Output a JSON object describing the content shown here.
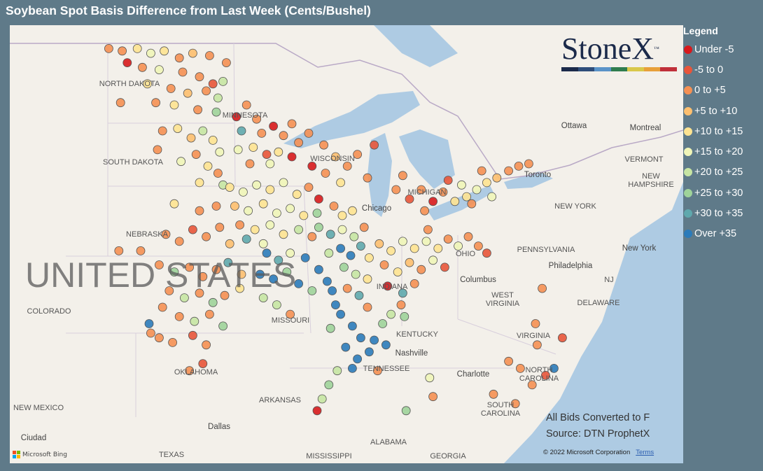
{
  "title": "Soybean Spot Basis Difference from Last Week (Cents/Bushel)",
  "legend": {
    "title": "Legend",
    "items": [
      {
        "label": "Under -5",
        "color": "#d7191c"
      },
      {
        "label": "-5 to 0",
        "color": "#e8553a"
      },
      {
        "label": "0 to +5",
        "color": "#f59053"
      },
      {
        "label": "+5 to +10",
        "color": "#fdbf6f"
      },
      {
        "label": "+10 to +15",
        "color": "#fee391"
      },
      {
        "label": "+15 to +20",
        "color": "#f0f5b8"
      },
      {
        "label": "+20 to +25",
        "color": "#c7e5a3"
      },
      {
        "label": "+25 to +30",
        "color": "#9fd39a"
      },
      {
        "label": "+30 to +35",
        "color": "#5fa8ad"
      },
      {
        "label": "Over +35",
        "color": "#2b7bba"
      }
    ]
  },
  "logo": {
    "text": "StoneX",
    "tm": "™",
    "bar_colors": [
      "#1b2a4a",
      "#2e4d7a",
      "#5a93c8",
      "#2f7d4f",
      "#d9c84a",
      "#e8a03a",
      "#c0303a"
    ]
  },
  "notes": {
    "line1": "All Bids Converted to F",
    "line2": "Source: DTN ProphetX"
  },
  "attribution": {
    "copyright": "© 2022 Microsoft Corporation",
    "terms": "Terms",
    "bing": "Microsoft Bing"
  },
  "map": {
    "country_label": "UNITED STATES",
    "labels": [
      "NORTH DAKOTA",
      "MINNESOTA",
      "SOUTH DAKOTA",
      "WISCONSIN",
      "MICHIGAN",
      "NEBRASKA",
      "COLORADO",
      "MISSOURI",
      "INDIANA",
      "OHIO",
      "PENNSYLVANIA",
      "WEST VIRGINIA",
      "VIRGINIA",
      "KENTUCKY",
      "TENNESSEE",
      "NORTH CAROLINA",
      "SOUTH CAROLINA",
      "OKLAHOMA",
      "ARKANSAS",
      "NEW MEXICO",
      "NEW YORK",
      "VERMONT",
      "NEW HAMPSHIRE",
      "NJ",
      "DELAWARE",
      "ALABAMA",
      "MISSISSIPPI",
      "GEORGIA",
      "TEXAS"
    ],
    "cities": [
      "Ottawa",
      "Montreal",
      "Toronto",
      "Chicago",
      "Columbus",
      "Philadelphia",
      "New York",
      "Nashville",
      "Charlotte",
      "Dallas",
      "Ciudad"
    ]
  },
  "chart_data": {
    "type": "scatter",
    "title": "Soybean Spot Basis Difference from Last Week (Cents/Bushel)",
    "encoding": "points are [longitude, latitude, legend bin index]",
    "points": [
      [
        -103.4,
        48.9,
        2
      ],
      [
        -102.6,
        48.8,
        2
      ],
      [
        -101.7,
        48.9,
        4
      ],
      [
        -100.9,
        48.7,
        5
      ],
      [
        -100.1,
        48.8,
        4
      ],
      [
        -99.2,
        48.5,
        2
      ],
      [
        -98.4,
        48.7,
        3
      ],
      [
        -97.4,
        48.6,
        2
      ],
      [
        -102.3,
        48.3,
        0
      ],
      [
        -101.4,
        48.1,
        2
      ],
      [
        -100.4,
        48.0,
        5
      ],
      [
        -99.0,
        47.9,
        2
      ],
      [
        -98.0,
        47.7,
        2
      ],
      [
        -97.2,
        47.4,
        1
      ],
      [
        -101.1,
        47.4,
        4
      ],
      [
        -99.7,
        47.2,
        2
      ],
      [
        -98.7,
        47.0,
        3
      ],
      [
        -97.6,
        47.1,
        2
      ],
      [
        -96.9,
        46.8,
        6
      ],
      [
        -98.1,
        46.3,
        2
      ],
      [
        -99.5,
        46.5,
        4
      ],
      [
        -100.6,
        46.6,
        2
      ],
      [
        -102.7,
        46.6,
        2
      ],
      [
        -97.0,
        46.2,
        7
      ],
      [
        -96.6,
        47.5,
        6
      ],
      [
        -96.4,
        48.3,
        2
      ],
      [
        -95.8,
        46.0,
        0
      ],
      [
        -95.2,
        46.5,
        2
      ],
      [
        -94.6,
        45.9,
        2
      ],
      [
        -95.5,
        45.4,
        8
      ],
      [
        -94.3,
        45.3,
        2
      ],
      [
        -93.6,
        45.6,
        0
      ],
      [
        -93.0,
        45.2,
        2
      ],
      [
        -92.5,
        45.7,
        2
      ],
      [
        -100.2,
        45.4,
        2
      ],
      [
        -99.3,
        45.5,
        4
      ],
      [
        -98.5,
        45.1,
        3
      ],
      [
        -97.8,
        45.4,
        6
      ],
      [
        -97.2,
        45.0,
        4
      ],
      [
        -96.8,
        44.5,
        5
      ],
      [
        -98.2,
        44.4,
        2
      ],
      [
        -99.1,
        44.1,
        5
      ],
      [
        -97.5,
        43.9,
        4
      ],
      [
        -96.9,
        43.6,
        2
      ],
      [
        -100.5,
        44.6,
        2
      ],
      [
        -96.6,
        43.1,
        6
      ],
      [
        -98.0,
        43.2,
        4
      ],
      [
        -95.7,
        44.6,
        5
      ],
      [
        -94.8,
        44.7,
        4
      ],
      [
        -94.0,
        44.4,
        1
      ],
      [
        -93.3,
        44.5,
        4
      ],
      [
        -92.5,
        44.3,
        0
      ],
      [
        -93.8,
        44.0,
        5
      ],
      [
        -95.0,
        44.0,
        2
      ],
      [
        -92.1,
        44.9,
        2
      ],
      [
        -91.5,
        45.3,
        2
      ],
      [
        -90.6,
        44.8,
        2
      ],
      [
        -89.9,
        44.3,
        3
      ],
      [
        -89.2,
        43.9,
        2
      ],
      [
        -88.6,
        44.4,
        2
      ],
      [
        -88.0,
        43.4,
        2
      ],
      [
        -89.6,
        43.2,
        4
      ],
      [
        -90.5,
        43.6,
        2
      ],
      [
        -91.3,
        43.9,
        0
      ],
      [
        -87.6,
        44.8,
        1
      ],
      [
        -96.2,
        43.0,
        4
      ],
      [
        -95.4,
        42.8,
        5
      ],
      [
        -94.6,
        43.1,
        5
      ],
      [
        -93.8,
        42.9,
        4
      ],
      [
        -93.0,
        43.2,
        5
      ],
      [
        -92.2,
        42.7,
        4
      ],
      [
        -91.5,
        43.0,
        2
      ],
      [
        -90.9,
        42.5,
        0
      ],
      [
        -95.9,
        42.2,
        3
      ],
      [
        -95.1,
        42.0,
        5
      ],
      [
        -94.2,
        42.3,
        4
      ],
      [
        -93.4,
        41.9,
        5
      ],
      [
        -92.6,
        42.1,
        5
      ],
      [
        -91.8,
        41.8,
        4
      ],
      [
        -91.0,
        41.9,
        7
      ],
      [
        -95.6,
        41.4,
        2
      ],
      [
        -94.7,
        41.2,
        4
      ],
      [
        -93.8,
        41.4,
        5
      ],
      [
        -93.0,
        41.0,
        4
      ],
      [
        -92.1,
        41.2,
        6
      ],
      [
        -91.3,
        40.9,
        2
      ],
      [
        -95.2,
        40.8,
        8
      ],
      [
        -94.2,
        40.6,
        5
      ],
      [
        -100.0,
        41.0,
        2
      ],
      [
        -99.2,
        40.7,
        2
      ],
      [
        -98.4,
        41.2,
        1
      ],
      [
        -97.6,
        40.9,
        2
      ],
      [
        -96.8,
        41.3,
        2
      ],
      [
        -96.2,
        40.6,
        3
      ],
      [
        -98.0,
        42.0,
        2
      ],
      [
        -97.0,
        42.2,
        2
      ],
      [
        -99.5,
        42.3,
        4
      ],
      [
        -101.5,
        40.3,
        2
      ],
      [
        -102.8,
        40.3,
        2
      ],
      [
        -100.4,
        39.7,
        2
      ],
      [
        -99.5,
        39.4,
        7
      ],
      [
        -98.6,
        39.6,
        2
      ],
      [
        -97.8,
        39.2,
        2
      ],
      [
        -97.0,
        39.5,
        2
      ],
      [
        -96.3,
        39.8,
        8
      ],
      [
        -95.5,
        39.3,
        3
      ],
      [
        -99.8,
        38.6,
        2
      ],
      [
        -98.9,
        38.3,
        6
      ],
      [
        -98.0,
        38.5,
        2
      ],
      [
        -97.2,
        38.1,
        7
      ],
      [
        -96.5,
        38.4,
        2
      ],
      [
        -95.6,
        38.7,
        4
      ],
      [
        -100.2,
        37.9,
        2
      ],
      [
        -99.2,
        37.5,
        2
      ],
      [
        -98.3,
        37.3,
        6
      ],
      [
        -97.4,
        37.6,
        2
      ],
      [
        -96.6,
        37.1,
        7
      ],
      [
        -101.0,
        37.2,
        9
      ],
      [
        -100.4,
        36.6,
        2
      ],
      [
        -99.6,
        36.4,
        2
      ],
      [
        -98.4,
        36.7,
        1
      ],
      [
        -97.6,
        36.3,
        2
      ],
      [
        -97.8,
        35.5,
        1
      ],
      [
        -98.6,
        35.2,
        2
      ],
      [
        -100.9,
        36.8,
        2
      ],
      [
        -94.0,
        40.2,
        9
      ],
      [
        -93.3,
        39.9,
        8
      ],
      [
        -92.6,
        40.2,
        5
      ],
      [
        -91.7,
        40.0,
        9
      ],
      [
        -94.4,
        39.3,
        9
      ],
      [
        -93.6,
        39.1,
        9
      ],
      [
        -92.8,
        39.4,
        7
      ],
      [
        -92.1,
        38.9,
        9
      ],
      [
        -91.3,
        38.6,
        7
      ],
      [
        -94.2,
        38.3,
        6
      ],
      [
        -93.4,
        38.0,
        6
      ],
      [
        -92.6,
        37.6,
        2
      ],
      [
        -90.9,
        39.5,
        9
      ],
      [
        -90.4,
        39.0,
        9
      ],
      [
        -90.1,
        38.6,
        9
      ],
      [
        -89.9,
        38.0,
        9
      ],
      [
        -89.6,
        37.6,
        9
      ],
      [
        -90.2,
        37.0,
        7
      ],
      [
        -90.9,
        41.3,
        7
      ],
      [
        -90.2,
        41.0,
        8
      ],
      [
        -89.5,
        41.2,
        5
      ],
      [
        -88.8,
        40.9,
        6
      ],
      [
        -88.2,
        41.3,
        2
      ],
      [
        -89.6,
        40.4,
        9
      ],
      [
        -89.0,
        40.1,
        9
      ],
      [
        -88.4,
        40.5,
        8
      ],
      [
        -87.9,
        40.0,
        4
      ],
      [
        -90.3,
        40.2,
        6
      ],
      [
        -89.4,
        39.6,
        7
      ],
      [
        -88.7,
        39.3,
        6
      ],
      [
        -88.0,
        39.1,
        4
      ],
      [
        -89.2,
        38.7,
        2
      ],
      [
        -88.5,
        38.4,
        8
      ],
      [
        -88.0,
        37.9,
        2
      ],
      [
        -89.5,
        41.8,
        4
      ],
      [
        -90.0,
        42.2,
        2
      ],
      [
        -88.9,
        42.0,
        4
      ],
      [
        -87.3,
        40.6,
        3
      ],
      [
        -86.6,
        40.3,
        4
      ],
      [
        -85.9,
        40.7,
        5
      ],
      [
        -85.2,
        40.4,
        4
      ],
      [
        -84.5,
        40.7,
        5
      ],
      [
        -83.8,
        40.4,
        4
      ],
      [
        -83.2,
        40.8,
        2
      ],
      [
        -82.6,
        40.5,
        5
      ],
      [
        -87.0,
        39.7,
        2
      ],
      [
        -86.2,
        39.4,
        4
      ],
      [
        -85.5,
        39.8,
        3
      ],
      [
        -84.8,
        39.5,
        2
      ],
      [
        -84.1,
        39.9,
        5
      ],
      [
        -83.4,
        39.6,
        1
      ],
      [
        -86.8,
        38.8,
        0
      ],
      [
        -85.9,
        38.5,
        8
      ],
      [
        -85.2,
        38.9,
        2
      ],
      [
        -84.4,
        41.2,
        2
      ],
      [
        -82.0,
        40.9,
        2
      ],
      [
        -81.4,
        40.5,
        2
      ],
      [
        -80.9,
        40.2,
        1
      ],
      [
        -86.3,
        42.9,
        2
      ],
      [
        -85.5,
        42.5,
        1
      ],
      [
        -84.8,
        42.9,
        2
      ],
      [
        -84.1,
        42.4,
        0
      ],
      [
        -83.5,
        42.8,
        2
      ],
      [
        -85.9,
        43.5,
        2
      ],
      [
        -83.2,
        43.3,
        1
      ],
      [
        -84.6,
        42.0,
        2
      ],
      [
        -82.8,
        42.4,
        4
      ],
      [
        -82.1,
        42.6,
        4
      ],
      [
        -81.5,
        42.9,
        5
      ],
      [
        -80.9,
        43.2,
        4
      ],
      [
        -80.3,
        43.4,
        3
      ],
      [
        -81.2,
        43.7,
        2
      ],
      [
        -82.4,
        43.1,
        5
      ],
      [
        -79.6,
        43.7,
        2
      ],
      [
        -79.0,
        43.9,
        2
      ],
      [
        -78.4,
        44.0,
        2
      ],
      [
        -80.6,
        42.6,
        5
      ],
      [
        -81.8,
        42.3,
        2
      ],
      [
        -88.9,
        37.1,
        9
      ],
      [
        -88.4,
        36.6,
        9
      ],
      [
        -87.9,
        36.0,
        9
      ],
      [
        -88.6,
        35.7,
        9
      ],
      [
        -87.6,
        36.5,
        9
      ],
      [
        -86.9,
        36.3,
        9
      ],
      [
        -89.3,
        36.2,
        9
      ],
      [
        -88.9,
        35.3,
        9
      ],
      [
        -87.1,
        37.2,
        7
      ],
      [
        -86.6,
        37.6,
        6
      ],
      [
        -89.8,
        35.2,
        6
      ],
      [
        -90.3,
        34.6,
        7
      ],
      [
        -90.7,
        34.0,
        6
      ],
      [
        -91.0,
        33.5,
        0
      ],
      [
        -87.4,
        35.2,
        2
      ],
      [
        -85.8,
        37.5,
        7
      ],
      [
        -86.0,
        38.0,
        2
      ],
      [
        -84.3,
        34.9,
        5
      ],
      [
        -84.1,
        34.1,
        2
      ],
      [
        -85.7,
        33.5,
        7
      ],
      [
        -79.6,
        35.6,
        2
      ],
      [
        -78.9,
        35.3,
        2
      ],
      [
        -77.9,
        36.3,
        2
      ],
      [
        -76.9,
        35.3,
        9
      ],
      [
        -77.4,
        35.0,
        1
      ],
      [
        -78.2,
        34.6,
        2
      ],
      [
        -80.5,
        34.2,
        2
      ],
      [
        -79.2,
        33.8,
        2
      ],
      [
        -77.6,
        38.7,
        2
      ],
      [
        -78.0,
        37.2,
        2
      ],
      [
        -76.4,
        36.6,
        1
      ]
    ]
  }
}
